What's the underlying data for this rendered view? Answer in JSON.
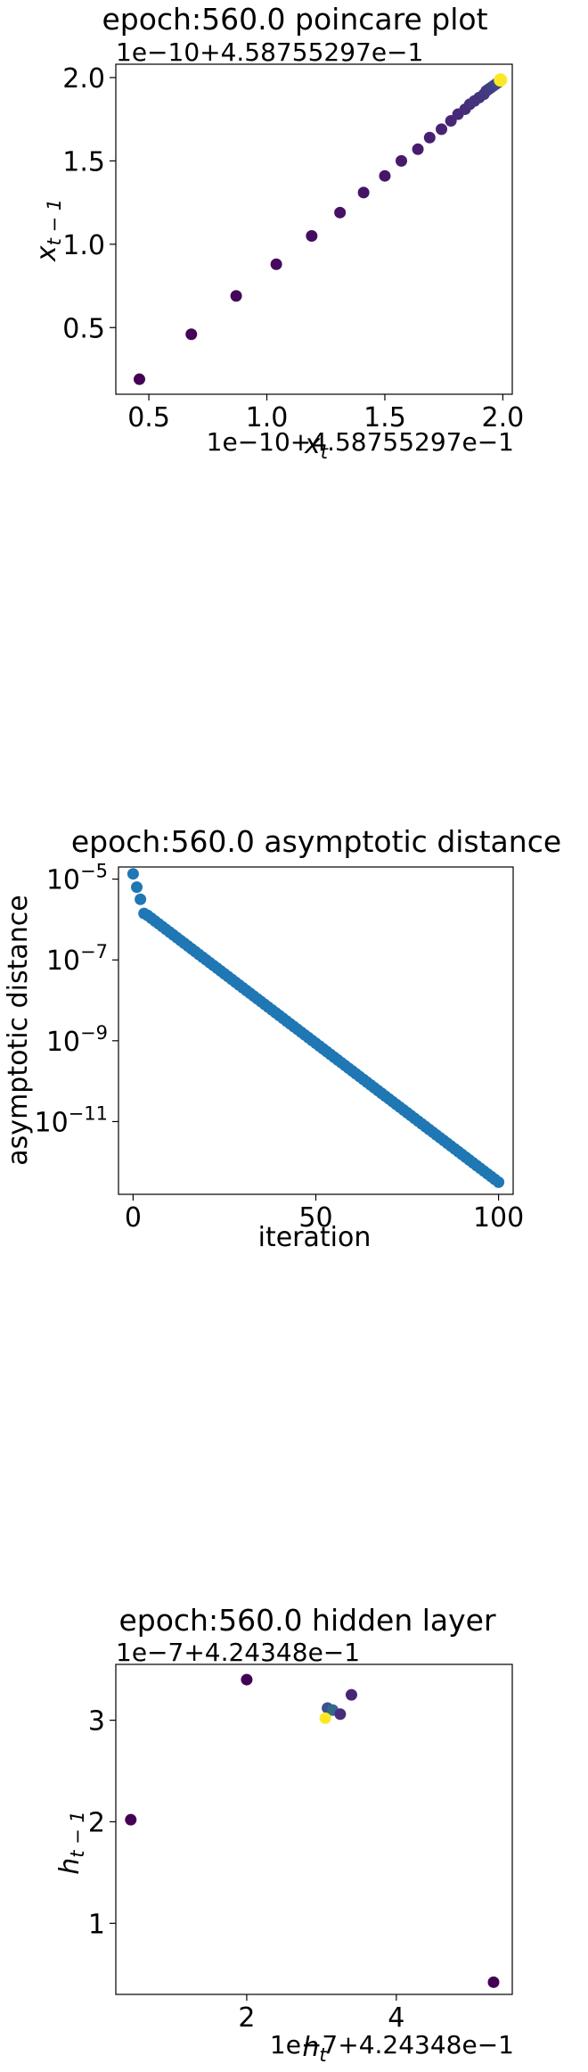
{
  "chart_data": [
    {
      "type": "scatter",
      "title": "epoch:560.0 poincare plot",
      "xlabel": "x_t",
      "ylabel": "x_{t-1}",
      "x_offset_label": "1e−10+4.58755297e−1",
      "y_offset_label": "1e−10+4.58755297e−1",
      "x_ticks": [
        "0.5",
        "1.0",
        "1.5",
        "2.0"
      ],
      "y_ticks": [
        "0.5",
        "1.0",
        "1.5",
        "2.0"
      ],
      "xlim": [
        0.36,
        2.04
      ],
      "ylim": [
        0.1,
        2.08
      ],
      "colormap": [
        "#440154",
        "#482878",
        "#3e4989",
        "#fde725"
      ],
      "points": [
        {
          "x": 0.46,
          "y": 0.19
        },
        {
          "x": 0.68,
          "y": 0.46
        },
        {
          "x": 0.87,
          "y": 0.69
        },
        {
          "x": 1.04,
          "y": 0.88
        },
        {
          "x": 1.19,
          "y": 1.05
        },
        {
          "x": 1.31,
          "y": 1.19
        },
        {
          "x": 1.41,
          "y": 1.31
        },
        {
          "x": 1.5,
          "y": 1.41
        },
        {
          "x": 1.57,
          "y": 1.5
        },
        {
          "x": 1.64,
          "y": 1.57
        },
        {
          "x": 1.69,
          "y": 1.64
        },
        {
          "x": 1.74,
          "y": 1.69
        },
        {
          "x": 1.78,
          "y": 1.74
        },
        {
          "x": 1.81,
          "y": 1.78
        },
        {
          "x": 1.84,
          "y": 1.81
        },
        {
          "x": 1.86,
          "y": 1.84
        },
        {
          "x": 1.88,
          "y": 1.86
        },
        {
          "x": 1.9,
          "y": 1.88
        },
        {
          "x": 1.92,
          "y": 1.9
        },
        {
          "x": 1.93,
          "y": 1.92
        },
        {
          "x": 1.94,
          "y": 1.93
        },
        {
          "x": 1.95,
          "y": 1.94
        },
        {
          "x": 1.96,
          "y": 1.95
        },
        {
          "x": 1.97,
          "y": 1.96
        },
        {
          "x": 1.98,
          "y": 1.97
        },
        {
          "x": 1.985,
          "y": 1.98
        },
        {
          "x": 1.99,
          "y": 1.985
        }
      ]
    },
    {
      "type": "scatter",
      "title": "epoch:560.0 asymptotic distance",
      "xlabel": "iteration",
      "ylabel": "asymptotic distance",
      "yscale": "log",
      "x_ticks": [
        "0",
        "50",
        "100"
      ],
      "y_ticks": [
        "10^-5",
        "10^-7",
        "10^-9",
        "10^-11"
      ],
      "xlim": [
        -4,
        104
      ],
      "ylim_log10": [
        -12.8,
        -4.7
      ],
      "color": "#1f77b4",
      "y_first": [
        -4.87,
        -5.2,
        -5.5,
        -5.85,
        -5.9
      ],
      "y_log10_start": -5.9,
      "y_log10_end": -12.5,
      "n_points": 101
    },
    {
      "type": "scatter",
      "title": "epoch:560.0 hidden layer",
      "xlabel": "h_t",
      "ylabel": "h_{t-1}",
      "x_offset_label": "1e−7+4.24348e−1",
      "y_offset_label": "1e−7+4.24348e−1",
      "x_ticks": [
        "2",
        "4"
      ],
      "y_ticks": [
        "1",
        "2",
        "3"
      ],
      "xlim": [
        0.25,
        5.55
      ],
      "ylim": [
        0.3,
        3.55
      ],
      "points": [
        {
          "x": 0.45,
          "y": 2.02,
          "color": "#440154"
        },
        {
          "x": 2.0,
          "y": 3.4,
          "color": "#440154"
        },
        {
          "x": 3.08,
          "y": 3.12,
          "color": "#3b528b"
        },
        {
          "x": 3.15,
          "y": 3.1,
          "color": "#31688e"
        },
        {
          "x": 3.25,
          "y": 3.06,
          "color": "#472d7b"
        },
        {
          "x": 3.4,
          "y": 3.25,
          "color": "#482475"
        },
        {
          "x": 5.3,
          "y": 0.42,
          "color": "#440154"
        },
        {
          "x": 3.05,
          "y": 3.02,
          "color": "#fde725"
        }
      ]
    }
  ]
}
